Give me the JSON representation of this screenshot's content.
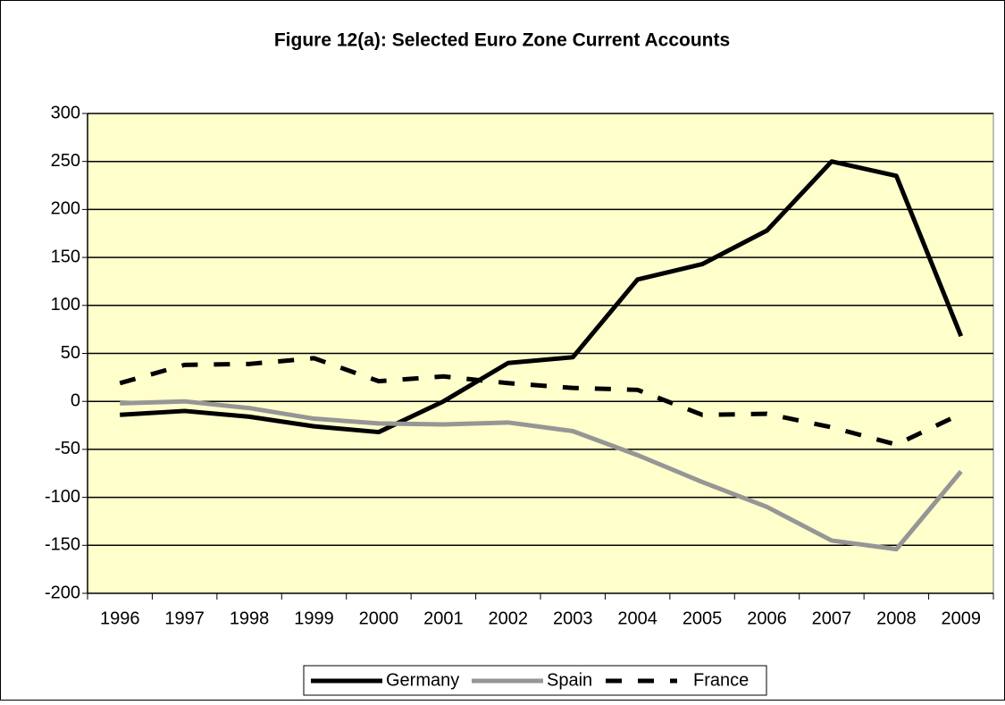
{
  "chart_data": {
    "type": "line",
    "title": "Figure 12(a): Selected Euro Zone Current Accounts",
    "categories": [
      "1996",
      "1997",
      "1998",
      "1999",
      "2000",
      "2001",
      "2002",
      "2003",
      "2004",
      "2005",
      "2006",
      "2007",
      "2008",
      "2009"
    ],
    "series": [
      {
        "name": "Germany",
        "color": "#000000",
        "dashed": false,
        "values": [
          -14,
          -10,
          -16,
          -26,
          -32,
          0,
          40,
          46,
          127,
          143,
          178,
          250,
          235,
          68
        ]
      },
      {
        "name": "Spain",
        "color": "#969696",
        "dashed": false,
        "values": [
          -2,
          0,
          -7,
          -18,
          -23,
          -24,
          -22,
          -31,
          -56,
          -84,
          -110,
          -145,
          -154,
          -73
        ]
      },
      {
        "name": "France",
        "color": "#000000",
        "dashed": true,
        "values": [
          19,
          38,
          39,
          45,
          21,
          26,
          19,
          14,
          12,
          -14,
          -13,
          -27,
          -45,
          -13
        ]
      }
    ],
    "ylim": [
      -200,
      300
    ],
    "yticks": [
      -200,
      -150,
      -100,
      -50,
      0,
      50,
      100,
      150,
      200,
      250,
      300
    ],
    "grid": true,
    "plot_background": "#FFFFCC",
    "legend": "bottom"
  }
}
